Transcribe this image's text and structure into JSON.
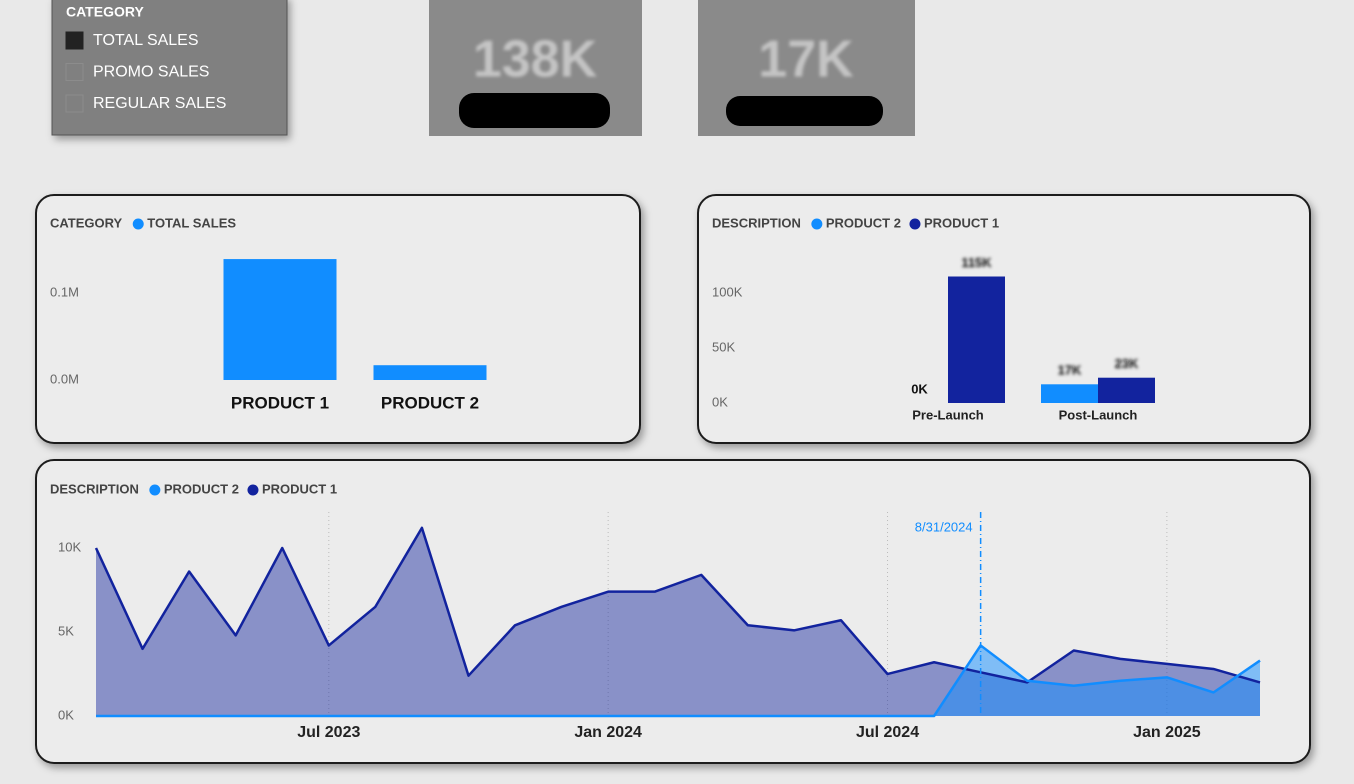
{
  "slicer": {
    "title": "CATEGORY",
    "items": [
      "TOTAL SALES",
      "PROMO SALES",
      "REGULAR SALES"
    ],
    "selected": 0
  },
  "cards": [
    "138K",
    "17K"
  ],
  "chart_data": [
    {
      "type": "bar",
      "legend_title": "CATEGORY",
      "categories": [
        "PRODUCT 1",
        "PRODUCT 2"
      ],
      "series": [
        {
          "name": "TOTAL SALES",
          "color": "#118dff",
          "values": [
            0.139,
            0.017
          ]
        }
      ],
      "ylim": [
        0,
        0.14
      ],
      "yticks": [
        {
          "value": 0,
          "label": "0.0M"
        },
        {
          "value": 0.1,
          "label": "0.1M"
        }
      ]
    },
    {
      "type": "bar",
      "legend_title": "DESCRIPTION",
      "categories": [
        "Pre-Launch",
        "Post-Launch"
      ],
      "series": [
        {
          "name": "PRODUCT 2",
          "color": "#118dff",
          "values": [
            0,
            17000
          ],
          "value_labels": [
            "0K",
            "17K"
          ]
        },
        {
          "name": "PRODUCT 1",
          "color": "#12239e",
          "values": [
            115000,
            23000
          ],
          "value_labels": [
            "115K",
            "23K"
          ]
        }
      ],
      "ylim": [
        0,
        125000
      ],
      "yticks": [
        {
          "value": 0,
          "label": "0K"
        },
        {
          "value": 50000,
          "label": "50K"
        },
        {
          "value": 100000,
          "label": "100K"
        }
      ]
    },
    {
      "type": "area",
      "legend_title": "DESCRIPTION",
      "x": [
        "2023-01",
        "2023-02",
        "2023-03",
        "2023-04",
        "2023-05",
        "2023-06",
        "2023-07",
        "2023-08",
        "2023-09",
        "2023-10",
        "2023-11",
        "2023-12",
        "2024-01",
        "2024-02",
        "2024-03",
        "2024-04",
        "2024-05",
        "2024-06",
        "2024-07",
        "2024-08",
        "2024-09",
        "2024-10",
        "2024-11",
        "2024-12",
        "2025-01",
        "2025-02"
      ],
      "series": [
        {
          "name": "PRODUCT 2",
          "color": "#118dff",
          "values": [
            0,
            0,
            0,
            0,
            0,
            0,
            0,
            0,
            0,
            0,
            0,
            0,
            0,
            0,
            0,
            0,
            0,
            0,
            0,
            4200,
            2100,
            1800,
            2100,
            2300,
            1400,
            3300
          ]
        },
        {
          "name": "PRODUCT 1",
          "color": "#12239e",
          "values": [
            10000,
            4000,
            8600,
            4800,
            10000,
            4200,
            6500,
            11200,
            2400,
            5400,
            6500,
            7400,
            7400,
            8400,
            5400,
            5100,
            5700,
            2500,
            3200,
            2600,
            2000,
            3900,
            3400,
            3100,
            2800,
            2000
          ]
        }
      ],
      "xlim": [
        "2023-01",
        "2025-02"
      ],
      "xticks": [
        {
          "value": "2023-07",
          "label": "Jul 2023"
        },
        {
          "value": "2024-01",
          "label": "Jan 2024"
        },
        {
          "value": "2024-07",
          "label": "Jul 2024"
        },
        {
          "value": "2025-01",
          "label": "Jan 2025"
        }
      ],
      "ylim": [
        0,
        12000
      ],
      "yticks": [
        {
          "value": 0,
          "label": "0K"
        },
        {
          "value": 5000,
          "label": "5K"
        },
        {
          "value": 10000,
          "label": "10K"
        }
      ],
      "grid": true,
      "annotation": {
        "label": "8/31/2024",
        "color": "#118dff"
      }
    }
  ]
}
